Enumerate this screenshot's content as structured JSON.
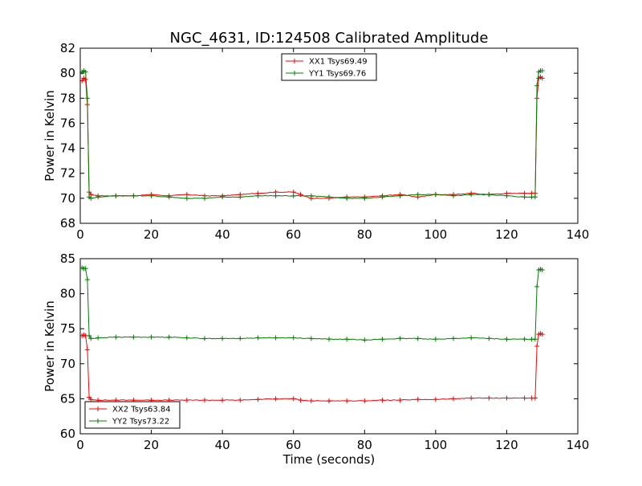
{
  "chart_data": [
    {
      "type": "line",
      "title": "NGC_4631, ID:124508 Calibrated Amplitude",
      "xlabel": "",
      "ylabel": "Power in Kelvin",
      "xlim": [
        0,
        140
      ],
      "ylim": [
        68,
        82
      ],
      "xticks": [
        0,
        20,
        40,
        60,
        80,
        100,
        120,
        140
      ],
      "yticks": [
        68,
        70,
        72,
        74,
        76,
        78,
        80,
        82
      ],
      "legend_position": "top-center",
      "grid": false,
      "series": [
        {
          "name": "XX1 Tsys69.49",
          "color": "#ff0000",
          "points": [
            [
              0.5,
              79.4
            ],
            [
              1,
              79.6
            ],
            [
              1.5,
              79.5
            ],
            [
              2,
              77.5
            ],
            [
              2.5,
              70.5
            ],
            [
              3,
              70.3
            ],
            [
              5,
              70.2
            ],
            [
              10,
              70.2
            ],
            [
              15,
              70.2
            ],
            [
              20,
              70.3
            ],
            [
              25,
              70.2
            ],
            [
              30,
              70.3
            ],
            [
              35,
              70.2
            ],
            [
              40,
              70.2
            ],
            [
              45,
              70.3
            ],
            [
              50,
              70.4
            ],
            [
              55,
              70.5
            ],
            [
              60,
              70.5
            ],
            [
              62,
              70.3
            ],
            [
              65,
              70.0
            ],
            [
              70,
              70.0
            ],
            [
              75,
              70.1
            ],
            [
              80,
              70.1
            ],
            [
              85,
              70.2
            ],
            [
              90,
              70.3
            ],
            [
              95,
              70.1
            ],
            [
              100,
              70.3
            ],
            [
              105,
              70.3
            ],
            [
              110,
              70.4
            ],
            [
              115,
              70.3
            ],
            [
              120,
              70.4
            ],
            [
              125,
              70.4
            ],
            [
              127,
              70.4
            ],
            [
              128,
              70.4
            ],
            [
              128.5,
              78
            ],
            [
              129,
              79.6
            ],
            [
              129.5,
              79.7
            ],
            [
              130,
              79.6
            ]
          ]
        },
        {
          "name": "YY1 Tsys69.76",
          "color": "#008000",
          "points": [
            [
              0.5,
              80.1
            ],
            [
              1,
              80.2
            ],
            [
              1.5,
              80.1
            ],
            [
              2,
              78
            ],
            [
              2.5,
              70.1
            ],
            [
              3,
              70.0
            ],
            [
              5,
              70.1
            ],
            [
              10,
              70.2
            ],
            [
              15,
              70.2
            ],
            [
              20,
              70.2
            ],
            [
              25,
              70.1
            ],
            [
              30,
              70.0
            ],
            [
              35,
              70.0
            ],
            [
              40,
              70.1
            ],
            [
              45,
              70.1
            ],
            [
              50,
              70.2
            ],
            [
              55,
              70.2
            ],
            [
              60,
              70.2
            ],
            [
              65,
              70.2
            ],
            [
              70,
              70.1
            ],
            [
              75,
              70.0
            ],
            [
              80,
              70.0
            ],
            [
              85,
              70.1
            ],
            [
              90,
              70.2
            ],
            [
              95,
              70.3
            ],
            [
              100,
              70.3
            ],
            [
              105,
              70.2
            ],
            [
              110,
              70.3
            ],
            [
              115,
              70.3
            ],
            [
              120,
              70.2
            ],
            [
              125,
              70.1
            ],
            [
              127,
              70.1
            ],
            [
              128,
              70.1
            ],
            [
              128.5,
              79
            ],
            [
              129,
              80.1
            ],
            [
              129.5,
              80.2
            ],
            [
              130,
              80.2
            ]
          ]
        }
      ]
    },
    {
      "type": "line",
      "title": "",
      "xlabel": "Time (seconds)",
      "ylabel": "Power in Kelvin",
      "xlim": [
        0,
        140
      ],
      "ylim": [
        60,
        85
      ],
      "xticks": [
        0,
        20,
        40,
        60,
        80,
        100,
        120,
        140
      ],
      "yticks": [
        60,
        65,
        70,
        75,
        80,
        85
      ],
      "legend_position": "lower-left",
      "grid": false,
      "series": [
        {
          "name": "XX2 Tsys63.84",
          "color": "#ff0000",
          "points": [
            [
              0.5,
              74.0
            ],
            [
              1,
              74.1
            ],
            [
              1.5,
              74.0
            ],
            [
              2,
              72
            ],
            [
              2.5,
              65.2
            ],
            [
              3,
              64.9
            ],
            [
              5,
              64.8
            ],
            [
              10,
              64.8
            ],
            [
              15,
              64.8
            ],
            [
              20,
              64.8
            ],
            [
              25,
              64.8
            ],
            [
              30,
              64.8
            ],
            [
              35,
              64.8
            ],
            [
              40,
              64.8
            ],
            [
              45,
              64.8
            ],
            [
              50,
              64.9
            ],
            [
              55,
              65.0
            ],
            [
              60,
              65.0
            ],
            [
              62,
              64.8
            ],
            [
              65,
              64.7
            ],
            [
              70,
              64.7
            ],
            [
              75,
              64.7
            ],
            [
              80,
              64.7
            ],
            [
              85,
              64.8
            ],
            [
              90,
              64.8
            ],
            [
              95,
              64.9
            ],
            [
              100,
              64.9
            ],
            [
              105,
              65.0
            ],
            [
              110,
              65.1
            ],
            [
              115,
              65.1
            ],
            [
              120,
              65.1
            ],
            [
              125,
              65.1
            ],
            [
              127,
              65.1
            ],
            [
              128,
              65.1
            ],
            [
              128.5,
              72.5
            ],
            [
              129,
              74.2
            ],
            [
              129.5,
              74.3
            ],
            [
              130,
              74.2
            ]
          ]
        },
        {
          "name": "YY2 Tsys73.22",
          "color": "#008000",
          "points": [
            [
              0.5,
              83.7
            ],
            [
              1,
              83.6
            ],
            [
              1.5,
              83.6
            ],
            [
              2,
              82
            ],
            [
              2.5,
              74
            ],
            [
              3,
              73.6
            ],
            [
              5,
              73.7
            ],
            [
              10,
              73.8
            ],
            [
              15,
              73.8
            ],
            [
              20,
              73.8
            ],
            [
              25,
              73.8
            ],
            [
              30,
              73.7
            ],
            [
              35,
              73.6
            ],
            [
              40,
              73.6
            ],
            [
              45,
              73.6
            ],
            [
              50,
              73.7
            ],
            [
              55,
              73.7
            ],
            [
              60,
              73.7
            ],
            [
              65,
              73.6
            ],
            [
              70,
              73.5
            ],
            [
              75,
              73.5
            ],
            [
              80,
              73.4
            ],
            [
              85,
              73.5
            ],
            [
              90,
              73.6
            ],
            [
              95,
              73.6
            ],
            [
              100,
              73.5
            ],
            [
              105,
              73.6
            ],
            [
              110,
              73.7
            ],
            [
              115,
              73.6
            ],
            [
              120,
              73.5
            ],
            [
              125,
              73.5
            ],
            [
              127,
              73.5
            ],
            [
              128,
              73.5
            ],
            [
              128.5,
              81
            ],
            [
              129,
              83.4
            ],
            [
              129.5,
              83.5
            ],
            [
              130,
              83.4
            ]
          ]
        }
      ]
    }
  ]
}
